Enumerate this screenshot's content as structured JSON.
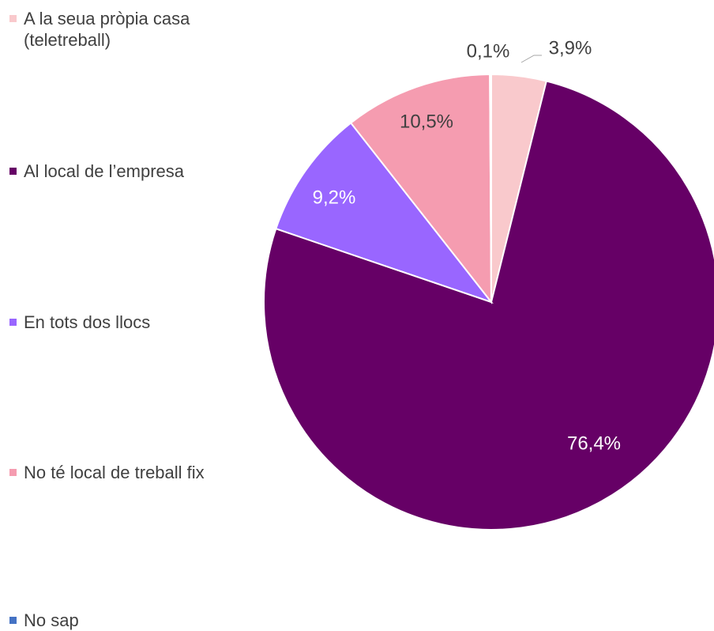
{
  "chart_data": {
    "type": "pie",
    "categories": [
      "A la seua pròpia casa (teletreball)",
      "Al local de l’empresa",
      "En tots dos llocs",
      "No té local de treball fix",
      "No sap"
    ],
    "values": [
      3.9,
      76.4,
      9.2,
      10.5,
      0.1
    ],
    "value_labels": [
      "3,9%",
      "76,4%",
      "9,2%",
      "10,5%",
      "0,1%"
    ],
    "colors": [
      "#f9c9cc",
      "#660066",
      "#9966ff",
      "#f59cb0",
      "#4472c4"
    ],
    "legend": "left"
  }
}
